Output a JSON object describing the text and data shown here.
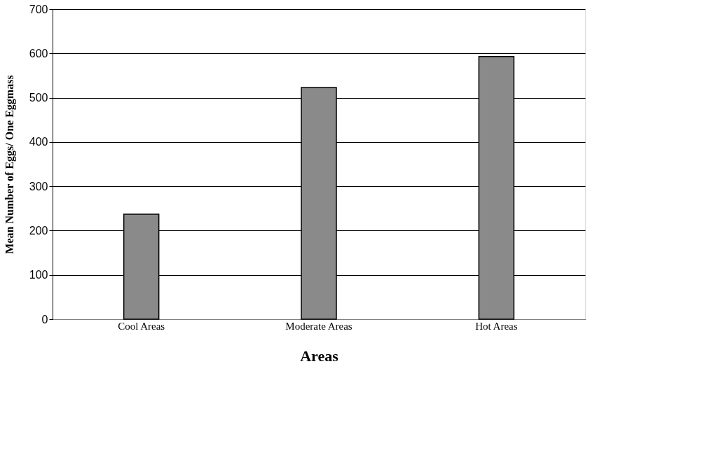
{
  "chart_data": {
    "type": "bar",
    "xlabel": "Areas",
    "ylabel": "Mean Number of Eggs/ One Eggmass",
    "categories": [
      "Cool Areas",
      "Moderate Areas",
      "Hot Areas"
    ],
    "values": [
      237,
      523,
      593
    ],
    "color": "#8a8a8a",
    "ylim": [
      0,
      700
    ],
    "yticks": [
      0,
      100,
      200,
      300,
      400,
      500,
      600,
      700
    ],
    "grid": "y"
  }
}
